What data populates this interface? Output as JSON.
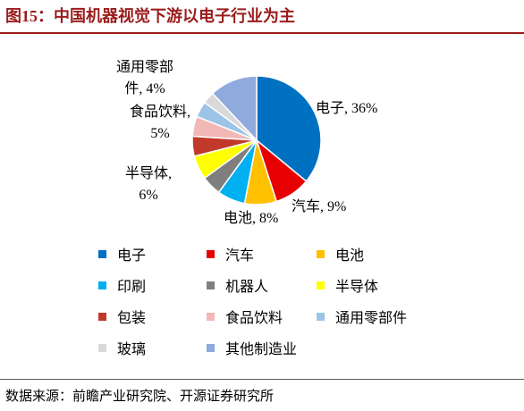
{
  "chart_data": {
    "type": "pie",
    "title": "图15：中国机器视觉下游以电子行业为主",
    "source": "数据来源：前瞻产业研究院、开源证券研究所",
    "categories": [
      "电子",
      "汽车",
      "电池",
      "印刷",
      "机器人",
      "半导体",
      "包装",
      "食品饮料",
      "通用零部件",
      "玻璃",
      "其他制造业"
    ],
    "values": [
      36,
      9,
      8,
      7,
      5,
      6,
      5,
      5,
      4,
      3,
      12
    ],
    "value_labels": [
      "电子, 36%",
      "汽车, 9%",
      "电池, 8%",
      null,
      null,
      "半导体,\n6%",
      null,
      "食品饮料,\n5%",
      "通用零部\n件, 4%",
      null,
      null
    ],
    "colors": [
      "#0070c0",
      "#e60000",
      "#ffc000",
      "#00b0f0",
      "#7f7f7f",
      "#ffff00",
      "#c0392b",
      "#f2b8b5",
      "#9dc3e6",
      "#d9d9d9",
      "#8faadc"
    ],
    "legend": "bottom"
  }
}
